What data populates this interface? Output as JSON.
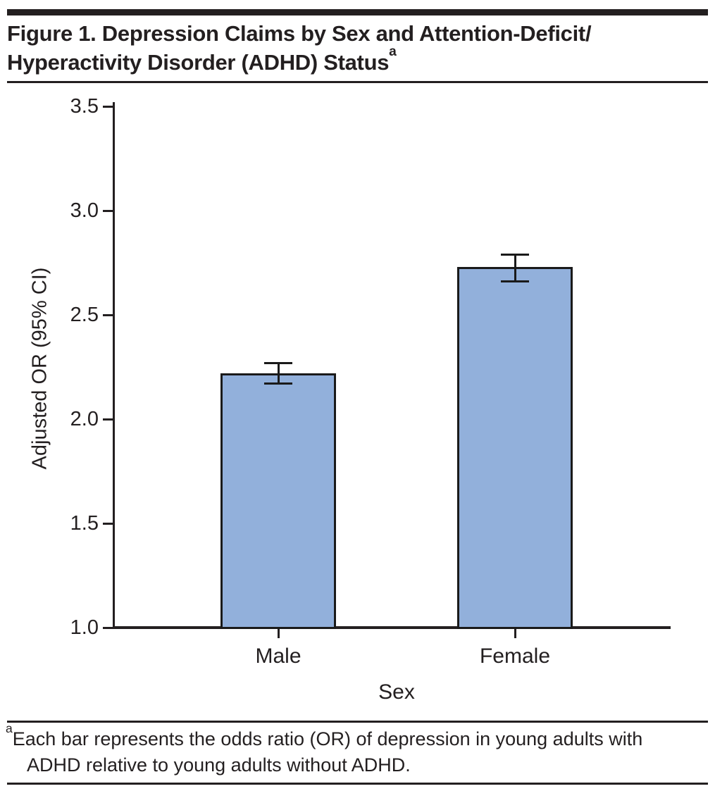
{
  "title": {
    "line1": "Figure 1. Depression Claims by Sex and Attention-Deficit/",
    "line2": "Hyperactivity Disorder (ADHD) Status",
    "superscript": "a"
  },
  "chart_data": {
    "type": "bar",
    "title": "",
    "xlabel": "Sex",
    "ylabel": "Adjusted OR (95% CI)",
    "categories": [
      "Male",
      "Female"
    ],
    "values": [
      2.22,
      2.73
    ],
    "error_low": [
      2.17,
      2.66
    ],
    "error_high": [
      2.27,
      2.79
    ],
    "ylim": [
      1.0,
      3.5
    ],
    "yticks": [
      1.0,
      1.5,
      2.0,
      2.5,
      3.0,
      3.5
    ],
    "ytick_labels": [
      "1.0",
      "1.5",
      "2.0",
      "2.5",
      "3.0",
      "3.5"
    ],
    "grid": false,
    "legend": "none"
  },
  "footnote": {
    "superscript": "a",
    "line1": "Each bar represents the odds ratio (OR) of depression in young adults with",
    "line2": "ADHD relative to young adults without ADHD."
  },
  "colors": {
    "bar_fill": "#92B0DB",
    "bar_border": "#1A1A1A",
    "axis": "#231F20",
    "text": "#231F20"
  }
}
